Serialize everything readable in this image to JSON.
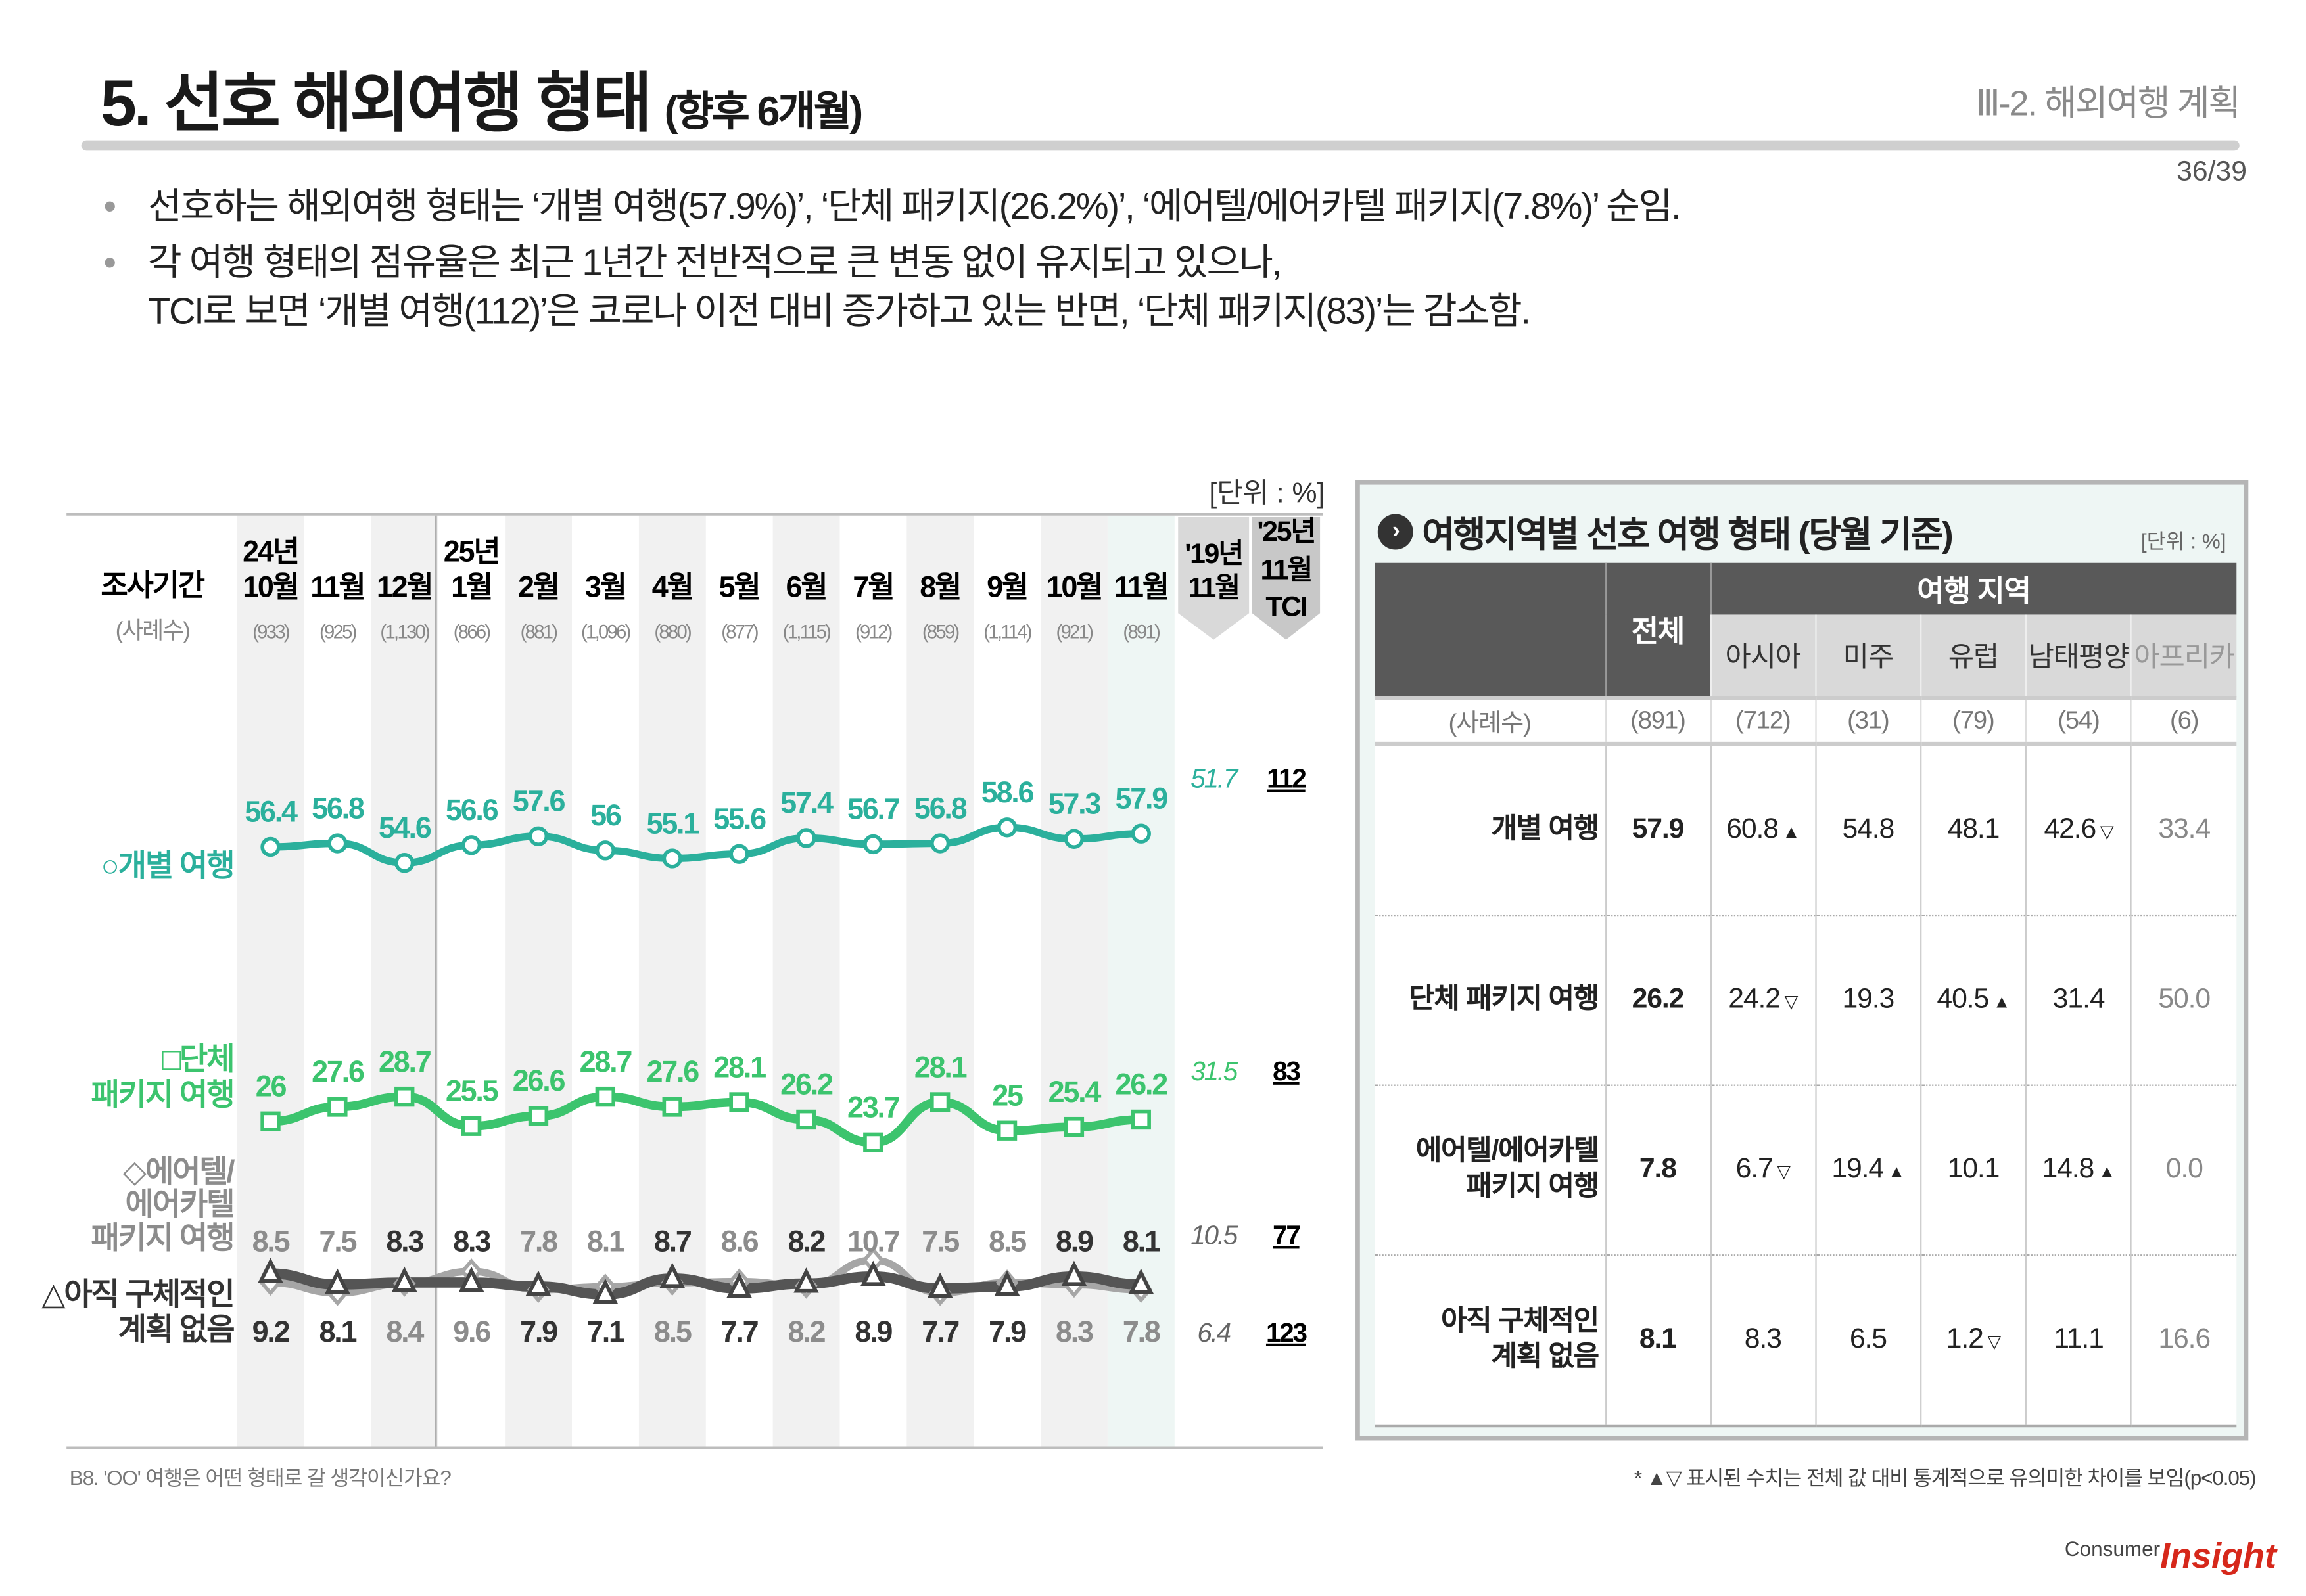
{
  "header": {
    "title": "5. 선호 해외여행 형태",
    "title_sub": "(향후 6개월)",
    "section": "Ⅲ-2. 해외여행 계획",
    "page": "36/39"
  },
  "bullets": [
    "선호하는 해외여행 형태는 ‘개별 여행(57.9%)’, ‘단체 패키지(26.2%)’, ‘에어텔/에어카텔 패키지(7.8%)’ 순임.",
    "각 여행 형태의 점유율은 최근 1년간 전반적으로 큰 변동 없이 유지되고 있으나,",
    "TCI로 보면 ‘개별 여행(112)’은 코로나 이전 대비 증가하고 있는 반면, ‘단체 패키지(83)’는 감소함."
  ],
  "chart_data": {
    "type": "line",
    "unit_label": "[단위 : %]",
    "row_header": "조사기간",
    "sample_header": "(사례수)",
    "year_labels": [
      "24년",
      "",
      "",
      "25년",
      "",
      "",
      "",
      "",
      "",
      "",
      "",
      "",
      "",
      ""
    ],
    "categories": [
      "10월",
      "11월",
      "12월",
      "1월",
      "2월",
      "3월",
      "4월",
      "5월",
      "6월",
      "7월",
      "8월",
      "9월",
      "10월",
      "11월"
    ],
    "sample_sizes": [
      "(933)",
      "(925)",
      "(1,130)",
      "(866)",
      "(881)",
      "(1,096)",
      "(880)",
      "(877)",
      "(1,115)",
      "(912)",
      "(859)",
      "(1,114)",
      "(921)",
      "(891)"
    ],
    "ref_header": [
      "'19년",
      "11월"
    ],
    "tci_header": [
      "'25년",
      "11월",
      "TCI"
    ],
    "series": [
      {
        "name": "○개별 여행",
        "color": "#2bb09c",
        "values": [
          56.4,
          56.8,
          54.6,
          56.6,
          57.6,
          56.0,
          55.1,
          55.6,
          57.4,
          56.7,
          56.8,
          58.6,
          57.3,
          57.9
        ],
        "ref_2019": "51.7",
        "tci": "112"
      },
      {
        "name": "□단체 패키지 여행",
        "color": "#3cc46e",
        "values": [
          26.0,
          27.6,
          28.7,
          25.5,
          26.6,
          28.7,
          27.6,
          28.1,
          26.2,
          23.7,
          28.1,
          25.0,
          25.4,
          26.2
        ],
        "ref_2019": "31.5",
        "tci": "83"
      },
      {
        "name": "◇에어텔/에어카텔 패키지 여행",
        "color": "#a6a6a6",
        "values": [
          8.5,
          7.5,
          8.4,
          9.6,
          7.8,
          8.1,
          8.5,
          8.6,
          8.2,
          10.7,
          7.5,
          8.5,
          8.3,
          7.8
        ],
        "ref_2019": "10.5",
        "tci": "77"
      },
      {
        "name": "△아직 구체적인 계획 없음",
        "color": "#555555",
        "values": [
          9.2,
          8.1,
          8.3,
          8.3,
          7.9,
          7.1,
          8.7,
          7.7,
          8.2,
          8.9,
          7.7,
          7.9,
          8.9,
          8.1
        ],
        "ref_2019": "6.4",
        "tci": "123"
      }
    ],
    "series_labels": [
      [
        "○개별 여행"
      ],
      [
        "□단체",
        "패키지 여행"
      ],
      [
        "◇에어텔/",
        "에어카텔",
        "패키지 여행"
      ],
      [
        "△아직 구체적인",
        "계획 없음"
      ]
    ],
    "grid": false
  },
  "left_footnote": "B8. 'OO' 여행은 어떤 형태로 갈 생각이신가요?",
  "panel": {
    "title": "여행지역별 선호 여행 형태 (당월 기준)",
    "unit": "[단위 : %]",
    "total_header": "전체",
    "region_header": "여행 지역",
    "regions": [
      "아시아",
      "미주",
      "유럽",
      "남태평양",
      "아프리카"
    ],
    "sample_label": "(사례수)",
    "samples": [
      "(891)",
      "(712)",
      "(31)",
      "(79)",
      "(54)",
      "(6)"
    ],
    "rows": [
      {
        "label": [
          "개별 여행"
        ],
        "total": "57.9",
        "cells": [
          {
            "v": "60.8",
            "m": "▲"
          },
          {
            "v": "54.8",
            "m": ""
          },
          {
            "v": "48.1",
            "m": ""
          },
          {
            "v": "42.6",
            "m": "▽"
          },
          {
            "v": "33.4",
            "m": ""
          }
        ]
      },
      {
        "label": [
          "단체 패키지 여행"
        ],
        "total": "26.2",
        "cells": [
          {
            "v": "24.2",
            "m": "▽"
          },
          {
            "v": "19.3",
            "m": ""
          },
          {
            "v": "40.5",
            "m": "▲"
          },
          {
            "v": "31.4",
            "m": ""
          },
          {
            "v": "50.0",
            "m": ""
          }
        ]
      },
      {
        "label": [
          "에어텔/에어카텔",
          "패키지 여행"
        ],
        "total": "7.8",
        "cells": [
          {
            "v": "6.7",
            "m": "▽"
          },
          {
            "v": "19.4",
            "m": "▲"
          },
          {
            "v": "10.1",
            "m": ""
          },
          {
            "v": "14.8",
            "m": "▲"
          },
          {
            "v": "0.0",
            "m": ""
          }
        ]
      },
      {
        "label": [
          "아직 구체적인",
          "계획 없음"
        ],
        "total": "8.1",
        "cells": [
          {
            "v": "8.3",
            "m": ""
          },
          {
            "v": "6.5",
            "m": ""
          },
          {
            "v": "1.2",
            "m": "▽"
          },
          {
            "v": "11.1",
            "m": ""
          },
          {
            "v": "16.6",
            "m": ""
          }
        ]
      }
    ],
    "footnote": "* ▲▽ 표시된 수치는 전체 값 대비 통계적으로 유의미한 차이를 보임(p<0.05)"
  },
  "logo": {
    "small": "Consumer",
    "big": "Insight"
  }
}
